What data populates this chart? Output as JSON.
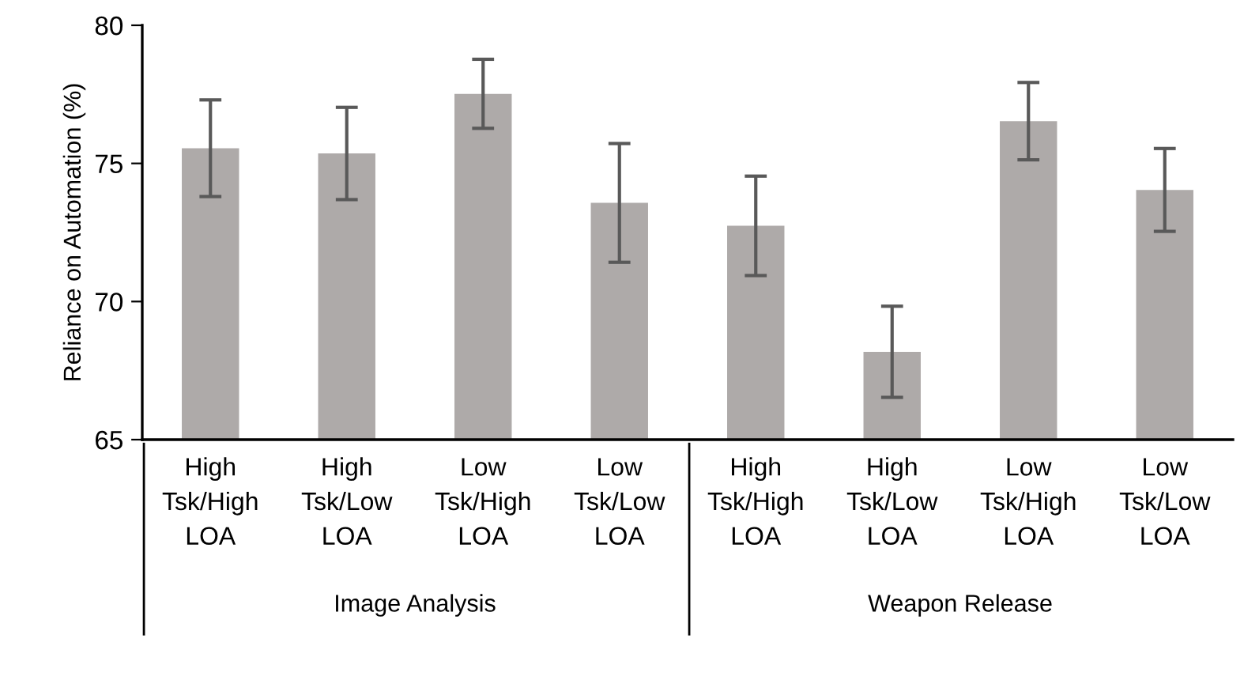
{
  "chart_data": {
    "type": "bar",
    "ylabel": "Reliance on Automation (%)",
    "categories": [
      "High Tsk/High LOA",
      "High Tsk/Low LOA",
      "Low Tsk/High LOA",
      "Low Tsk/Low LOA",
      "High Tsk/High LOA",
      "High Tsk/Low LOA",
      "Low Tsk/High LOA",
      "Low Tsk/Low LOA"
    ],
    "series": [
      {
        "color": "#aeaaa9",
        "values": [
          75.55,
          75.36,
          77.52,
          73.57,
          72.74,
          68.18,
          76.53,
          74.04
        ],
        "errors": [
          1.75,
          1.67,
          1.25,
          2.15,
          1.8,
          1.65,
          1.4,
          1.5
        ]
      }
    ],
    "ylim": [
      65,
      80
    ],
    "yticks": [
      65,
      70,
      75,
      80
    ],
    "grid": false,
    "annotations": [
      "Image Analysis",
      "Weapon Release"
    ]
  }
}
